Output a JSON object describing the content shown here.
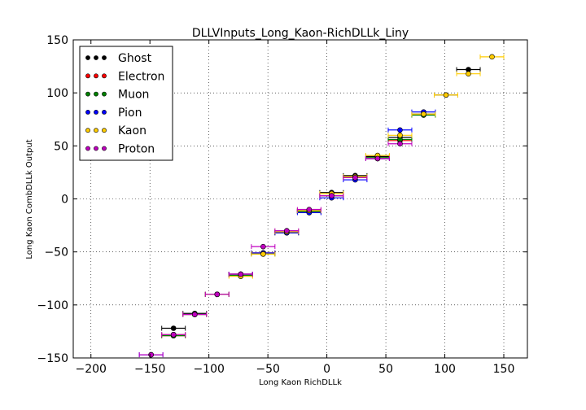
{
  "chart_data": {
    "type": "scatter",
    "title": "DLLVInputs_Long_Kaon-RichDLLk_Liny",
    "xlabel": "Long Kaon RichDLLk",
    "ylabel": "Long Kaon CombDLLk Output",
    "xlim": [
      -215,
      170
    ],
    "ylim": [
      -150,
      150
    ],
    "x_ticks": [
      -200,
      -150,
      -100,
      -50,
      0,
      50,
      100,
      150
    ],
    "y_ticks": [
      -150,
      -100,
      -50,
      0,
      50,
      100,
      150
    ],
    "x_tick_labels": [
      "−200",
      "−150",
      "−100",
      "−50",
      "0",
      "50",
      "100",
      "150"
    ],
    "y_tick_labels": [
      "−150",
      "−100",
      "−50",
      "0",
      "50",
      "100",
      "150"
    ],
    "grid": true,
    "legend_position": "top-left",
    "series": [
      {
        "name": "Ghost",
        "color": "#000000",
        "x": [
          -130,
          -112,
          -93,
          -73,
          -54,
          -34,
          -15,
          4,
          24,
          43,
          62,
          82,
          101,
          120
        ],
        "xerr": 10,
        "y": [
          -122,
          -108,
          -90,
          -71,
          -51,
          -31,
          -11,
          6,
          22,
          40,
          58,
          80,
          98,
          122
        ]
      },
      {
        "name": "Electron",
        "color": "#ff0000",
        "x": [
          -130,
          -112,
          -93,
          -73,
          -54,
          -34,
          -15,
          4,
          24,
          43,
          62
        ],
        "xerr": 10,
        "y": [
          -129,
          -109,
          -90,
          -71,
          -51,
          -32,
          -12,
          3,
          20,
          38,
          55
        ]
      },
      {
        "name": "Muon",
        "color": "#008000",
        "x": [
          -130,
          -112,
          -93,
          -73,
          -54,
          -34,
          -15,
          4,
          24,
          43,
          62,
          82
        ],
        "xerr": 10,
        "y": [
          -129,
          -109,
          -90,
          -72,
          -52,
          -32,
          -12,
          3,
          21,
          39,
          56,
          79
        ]
      },
      {
        "name": "Pion",
        "color": "#0000ff",
        "x": [
          -149,
          -130,
          -112,
          -93,
          -73,
          -54,
          -34,
          -15,
          4,
          24,
          43,
          62,
          82
        ],
        "xerr": 10,
        "y": [
          -147,
          -128,
          -109,
          -90,
          -71,
          -51,
          -32,
          -13,
          1,
          18,
          38,
          65,
          82
        ]
      },
      {
        "name": "Kaon",
        "color": "#ffcc00",
        "x": [
          -130,
          -112,
          -93,
          -73,
          -54,
          -34,
          -15,
          4,
          24,
          43,
          62,
          82,
          101,
          120,
          140
        ],
        "xerr": 10,
        "y": [
          -128,
          -109,
          -90,
          -73,
          -52,
          -31,
          -11,
          5,
          21,
          41,
          60,
          80,
          98,
          118,
          134
        ]
      },
      {
        "name": "Proton",
        "color": "#bf00bf",
        "x": [
          -149,
          -130,
          -112,
          -93,
          -73,
          -54,
          -34,
          -15,
          4,
          24,
          43,
          62
        ],
        "xerr": 10,
        "y": [
          -147,
          -128,
          -109,
          -90,
          -71,
          -45,
          -30,
          -10,
          3,
          20,
          38,
          52
        ]
      }
    ]
  }
}
